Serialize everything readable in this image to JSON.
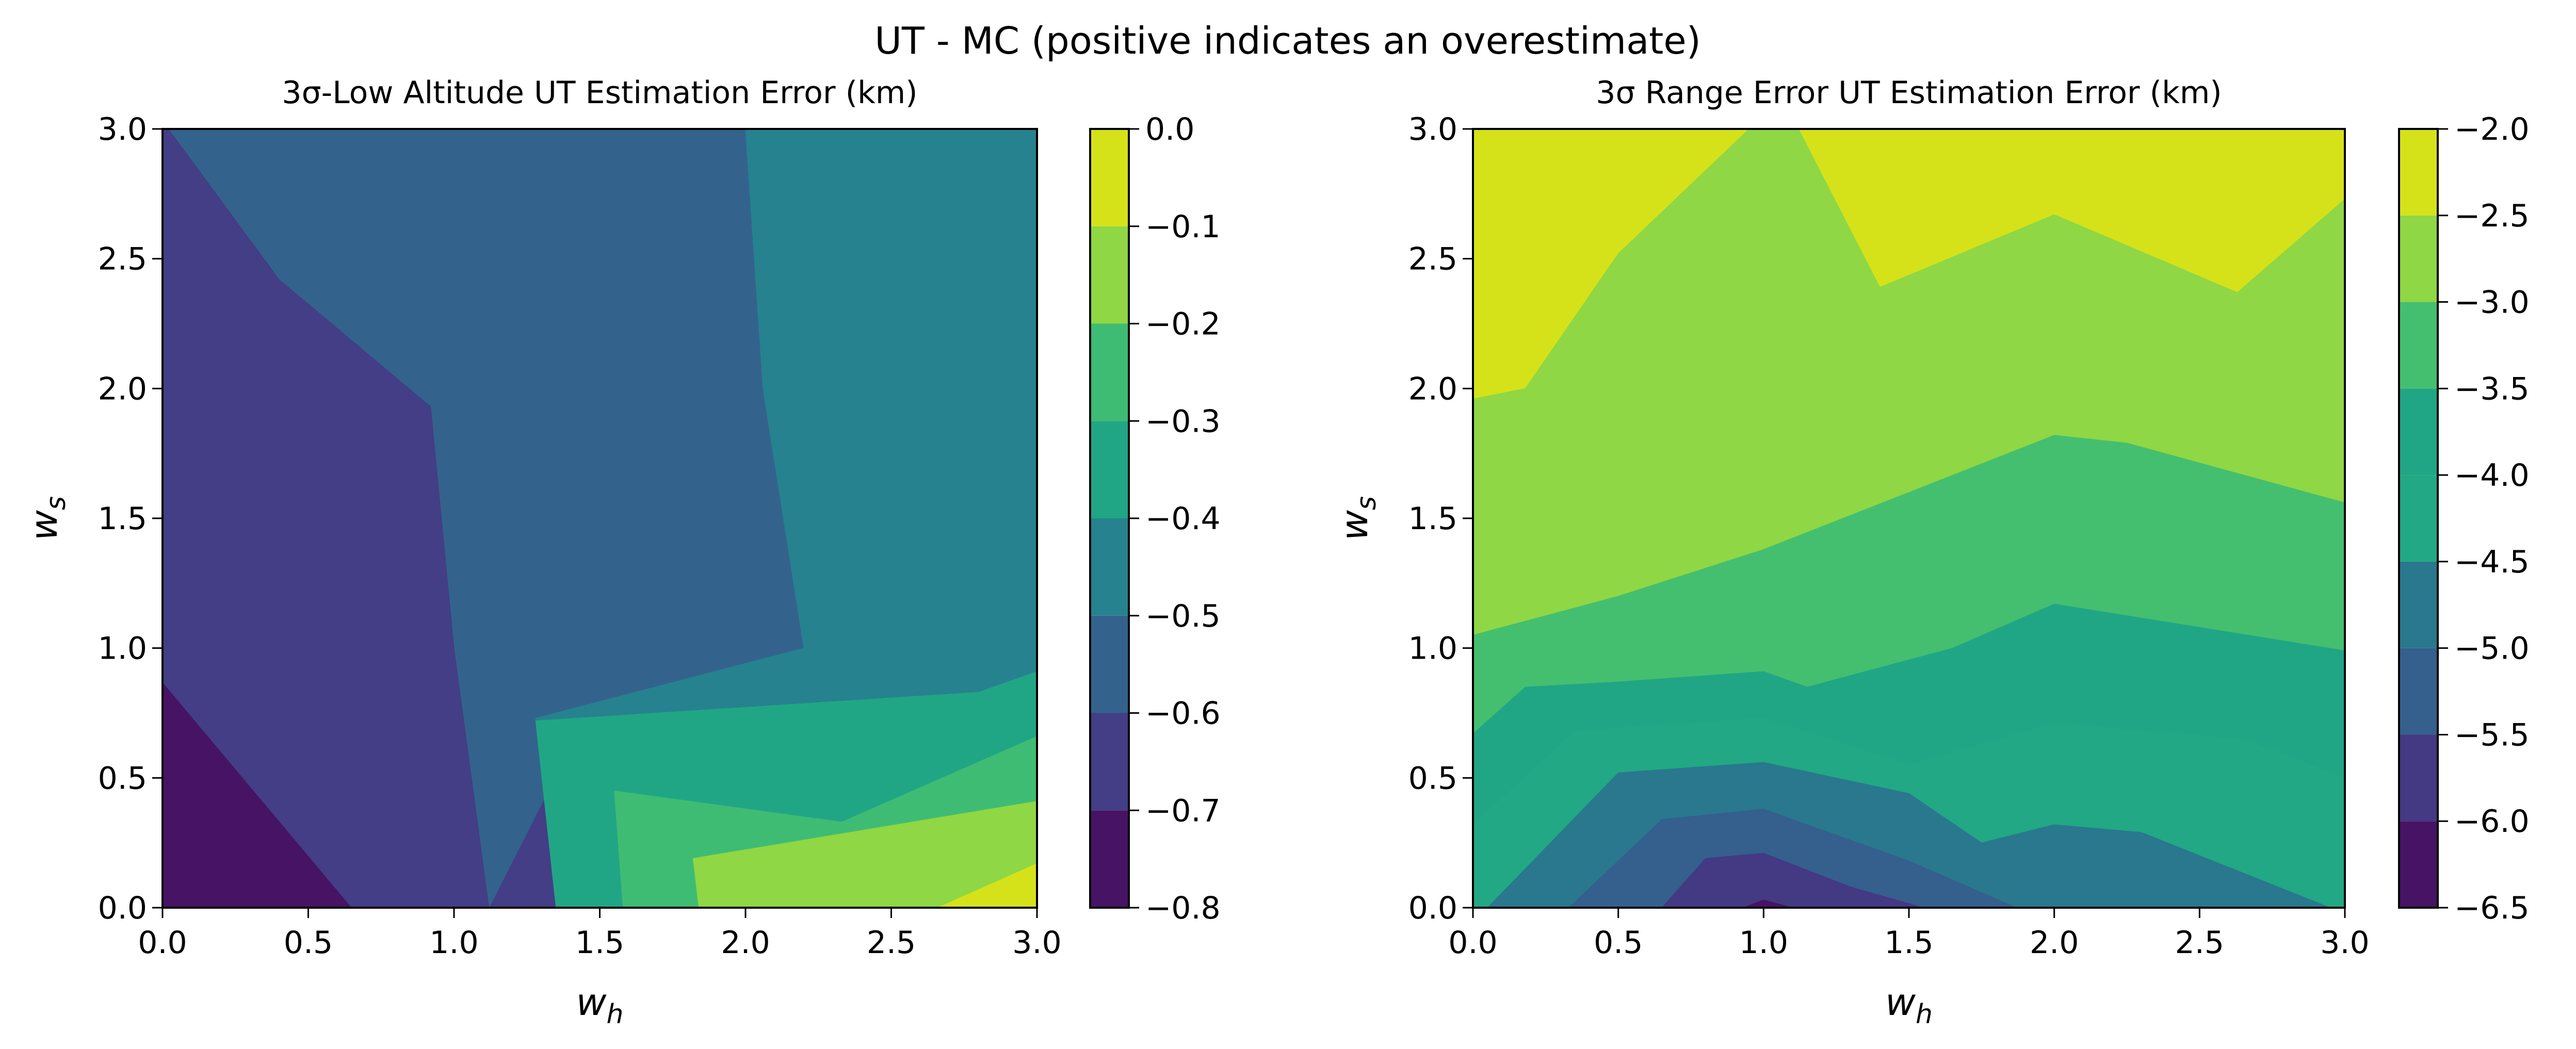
{
  "figure": {
    "title": "UT - MC (positive indicates an overestimate)"
  },
  "chart_data": [
    {
      "type": "contourf",
      "title": "3σ-Low Altitude UT Estimation Error (km)",
      "xlabel": "w_h",
      "ylabel": "w_s",
      "xlim": [
        0.0,
        3.0
      ],
      "ylim": [
        0.0,
        3.0
      ],
      "x_ticks": [
        "0.0",
        "0.5",
        "1.0",
        "1.5",
        "2.0",
        "2.5",
        "3.0"
      ],
      "y_ticks": [
        "0.0",
        "0.5",
        "1.0",
        "1.5",
        "2.0",
        "2.5",
        "3.0"
      ],
      "colorbar": {
        "levels": [
          -0.8,
          -0.7,
          -0.6,
          -0.5,
          -0.4,
          -0.3,
          -0.2,
          -0.1,
          0.0
        ],
        "tick_labels": [
          "−0.8",
          "−0.7",
          "−0.6",
          "−0.5",
          "−0.4",
          "−0.3",
          "−0.2",
          "−0.1",
          "0.0"
        ],
        "colors": [
          "#471365",
          "#433e85",
          "#33638d",
          "#26828e",
          "#21a685",
          "#3fbc73",
          "#8fd744",
          "#d5e21a"
        ]
      },
      "regions": [
        {
          "level": 1,
          "polygon": [
            [
              0.0,
              0.0
            ],
            [
              3.0,
              0.0
            ],
            [
              3.0,
              3.0
            ],
            [
              0.0,
              3.0
            ]
          ]
        },
        {
          "level": 0,
          "polygon": [
            [
              0.0,
              0.0
            ],
            [
              0.65,
              0.0
            ],
            [
              0.0,
              0.87
            ]
          ]
        },
        {
          "level": 2,
          "polygon": [
            [
              0.02,
              3.0
            ],
            [
              2.03,
              3.0
            ],
            [
              2.06,
              2.0
            ],
            [
              2.2,
              1.0
            ],
            [
              1.45,
              0.73
            ],
            [
              1.12,
              0.0
            ],
            [
              0.65,
              0.0
            ],
            [
              0.0,
              0.87
            ],
            [
              0.0,
              3.0
            ]
          ]
        },
        {
          "level": 1,
          "polygon": [
            [
              0.0,
              3.0
            ],
            [
              0.02,
              3.0
            ],
            [
              0.4,
              2.42
            ],
            [
              0.92,
              1.93
            ],
            [
              1.0,
              1.0
            ],
            [
              1.12,
              0.0
            ],
            [
              0.65,
              0.0
            ],
            [
              0.0,
              0.87
            ]
          ]
        },
        {
          "level": 3,
          "polygon": [
            [
              2.0,
              3.0
            ],
            [
              3.0,
              3.0
            ],
            [
              3.0,
              0.0
            ],
            [
              1.35,
              0.0
            ],
            [
              1.28,
              0.73
            ],
            [
              2.2,
              1.0
            ],
            [
              2.06,
              2.0
            ]
          ]
        },
        {
          "level": 4,
          "polygon": [
            [
              1.35,
              0.0
            ],
            [
              1.28,
              0.72
            ],
            [
              2.8,
              0.83
            ],
            [
              3.0,
              0.91
            ],
            [
              3.0,
              0.0
            ]
          ]
        },
        {
          "level": 5,
          "polygon": [
            [
              1.58,
              0.0
            ],
            [
              1.55,
              0.45
            ],
            [
              2.33,
              0.33
            ],
            [
              3.0,
              0.66
            ],
            [
              3.0,
              0.0
            ]
          ]
        },
        {
          "level": 6,
          "polygon": [
            [
              1.84,
              0.0
            ],
            [
              1.82,
              0.19
            ],
            [
              3.0,
              0.41
            ],
            [
              3.0,
              0.0
            ]
          ]
        },
        {
          "level": 7,
          "polygon": [
            [
              2.66,
              0.0
            ],
            [
              3.0,
              0.17
            ],
            [
              3.0,
              0.0
            ]
          ]
        }
      ]
    },
    {
      "type": "contourf",
      "title": "3σ Range Error UT Estimation Error (km)",
      "xlabel": "w_h",
      "ylabel": "w_s",
      "xlim": [
        0.0,
        3.0
      ],
      "ylim": [
        0.0,
        3.0
      ],
      "x_ticks": [
        "0.0",
        "0.5",
        "1.0",
        "1.5",
        "2.0",
        "2.5",
        "3.0"
      ],
      "y_ticks": [
        "0.0",
        "0.5",
        "1.0",
        "1.5",
        "2.0",
        "2.5",
        "3.0"
      ],
      "colorbar": {
        "levels": [
          -6.5,
          -6.0,
          -5.5,
          -5.0,
          -4.5,
          -4.0,
          -3.5,
          -3.0,
          -2.5,
          -2.0
        ],
        "tick_labels": [
          "−6.5",
          "−6.0",
          "−5.5",
          "−5.0",
          "−4.5",
          "−4.0",
          "−3.5",
          "−3.0",
          "−2.5",
          "−2.0"
        ],
        "colors": [
          "#471365",
          "#443983",
          "#355f8d",
          "#29788e",
          "#22a884",
          "#21a685",
          "#44bf70",
          "#8fd744",
          "#d5e21a"
        ]
      },
      "regions": [
        {
          "level": 8,
          "polygon": [
            [
              0.0,
              0.0
            ],
            [
              3.0,
              0.0
            ],
            [
              3.0,
              3.0
            ],
            [
              0.0,
              3.0
            ]
          ]
        },
        {
          "level": 7,
          "polygon": [
            [
              0.0,
              1.96
            ],
            [
              0.18,
              2.0
            ],
            [
              0.5,
              2.52
            ],
            [
              0.95,
              3.0
            ],
            [
              1.12,
              3.0
            ],
            [
              1.4,
              2.39
            ],
            [
              2.0,
              2.67
            ],
            [
              2.63,
              2.37
            ],
            [
              3.0,
              2.73
            ],
            [
              3.0,
              0.0
            ],
            [
              0.0,
              0.0
            ]
          ]
        },
        {
          "level": 6,
          "polygon": [
            [
              0.0,
              1.05
            ],
            [
              0.5,
              1.2
            ],
            [
              1.0,
              1.38
            ],
            [
              1.5,
              1.6
            ],
            [
              2.0,
              1.82
            ],
            [
              2.25,
              1.79
            ],
            [
              3.0,
              1.56
            ],
            [
              3.0,
              0.0
            ],
            [
              0.0,
              0.0
            ]
          ]
        },
        {
          "level": 5,
          "polygon": [
            [
              0.0,
              0.67
            ],
            [
              0.18,
              0.85
            ],
            [
              0.5,
              0.87
            ],
            [
              1.0,
              0.91
            ],
            [
              1.15,
              0.85
            ],
            [
              1.65,
              1.0
            ],
            [
              2.0,
              1.17
            ],
            [
              3.0,
              0.99
            ],
            [
              3.0,
              0.0
            ],
            [
              0.0,
              0.0
            ]
          ]
        },
        {
          "level": 4,
          "polygon": [
            [
              0.0,
              0.32
            ],
            [
              0.35,
              0.68
            ],
            [
              1.0,
              0.73
            ],
            [
              1.5,
              0.55
            ],
            [
              2.0,
              0.71
            ],
            [
              2.65,
              0.65
            ],
            [
              3.0,
              0.5
            ],
            [
              3.0,
              0.0
            ],
            [
              0.0,
              0.0
            ]
          ]
        },
        {
          "level": 3,
          "polygon": [
            [
              0.05,
              0.0
            ],
            [
              0.5,
              0.52
            ],
            [
              1.0,
              0.56
            ],
            [
              1.5,
              0.44
            ],
            [
              1.75,
              0.25
            ],
            [
              2.0,
              0.32
            ],
            [
              2.3,
              0.29
            ],
            [
              2.95,
              0.0
            ]
          ]
        },
        {
          "level": 2,
          "polygon": [
            [
              0.33,
              0.0
            ],
            [
              0.65,
              0.34
            ],
            [
              1.0,
              0.38
            ],
            [
              1.5,
              0.18
            ],
            [
              1.87,
              0.0
            ]
          ]
        },
        {
          "level": 1,
          "polygon": [
            [
              0.65,
              0.0
            ],
            [
              0.8,
              0.19
            ],
            [
              1.0,
              0.21
            ],
            [
              1.3,
              0.08
            ],
            [
              1.55,
              0.0
            ]
          ]
        },
        {
          "level": 0,
          "polygon": [
            [
              0.93,
              0.0
            ],
            [
              1.0,
              0.03
            ],
            [
              1.1,
              0.0
            ]
          ]
        }
      ]
    }
  ]
}
